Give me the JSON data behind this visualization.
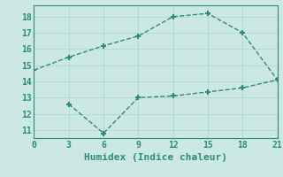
{
  "line1_x": [
    0,
    3,
    6,
    9,
    12,
    15,
    18,
    21
  ],
  "line1_y": [
    14.7,
    15.5,
    16.2,
    16.8,
    18.0,
    18.2,
    17.0,
    14.1
  ],
  "line2_x": [
    3,
    6,
    9,
    12,
    15,
    18,
    21
  ],
  "line2_y": [
    12.6,
    10.8,
    13.0,
    13.1,
    13.35,
    13.6,
    14.1
  ],
  "line_color": "#2d8b7a",
  "bg_color": "#cce8e4",
  "grid_color": "#b0d8d2",
  "xlabel": "Humidex (Indice chaleur)",
  "xlim": [
    0,
    21
  ],
  "ylim": [
    10.5,
    18.7
  ],
  "xticks": [
    0,
    3,
    6,
    9,
    12,
    15,
    18,
    21
  ],
  "yticks": [
    11,
    12,
    13,
    14,
    15,
    16,
    17,
    18
  ],
  "marker": "+",
  "marker_size": 5,
  "linewidth": 1.0,
  "linestyle": "--",
  "font_color": "#2d8b7a",
  "xlabel_fontsize": 8,
  "tick_fontsize": 7
}
